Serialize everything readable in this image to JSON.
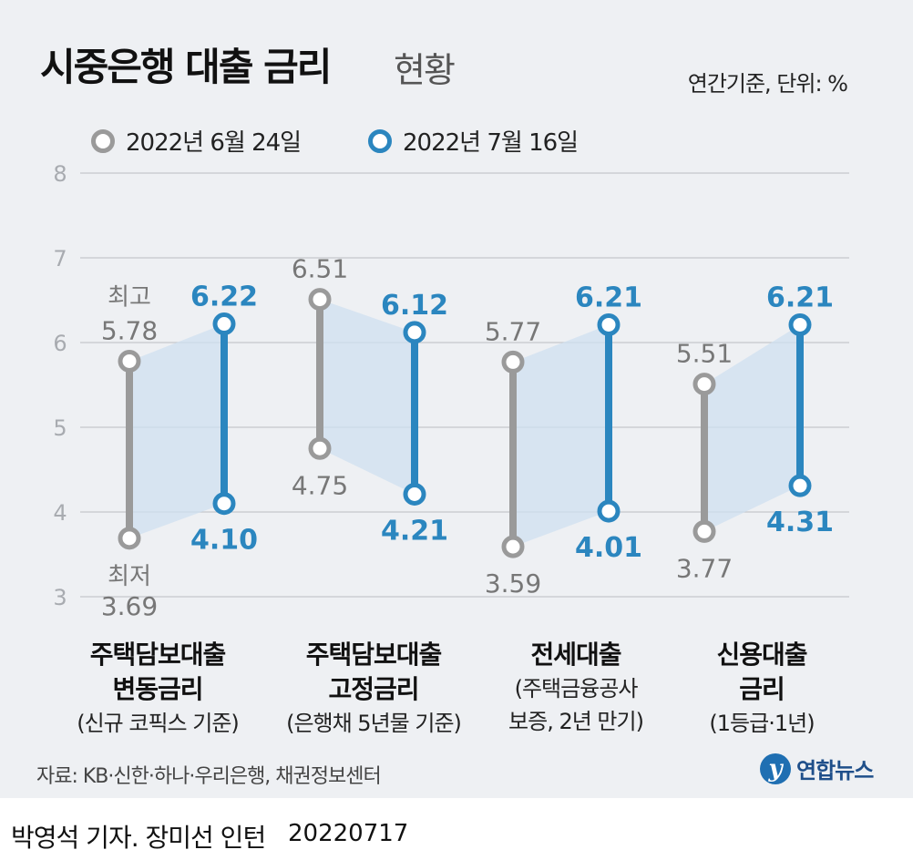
{
  "header": {
    "title_main": "시중은행 대출 금리",
    "title_sub": "현황",
    "unit_note": "연간기준, 단위: %"
  },
  "colors": {
    "old": "#9a9a9a",
    "new": "#2b86bf",
    "band": "#cfe0f0",
    "grid": "#c4c7cc",
    "panel": "#eef0f3"
  },
  "chart_data": {
    "type": "range-comparison",
    "title": "시중은행 대출 금리 현황",
    "ylim": [
      3,
      8
    ],
    "yticks": [
      "3",
      "4",
      "5",
      "6",
      "7",
      "8"
    ],
    "legend": [
      {
        "name": "2022년 6월 24일",
        "color_key": "old"
      },
      {
        "name": "2022년 7월 16일",
        "color_key": "new"
      }
    ],
    "categories": [
      {
        "line1": "주택담보대출",
        "line2": "변동금리",
        "line3": "(신규 코픽스 기준)",
        "line4": ""
      },
      {
        "line1": "주택담보대출",
        "line2": "고정금리",
        "line3": "(은행채 5년물 기준)",
        "line4": ""
      },
      {
        "line1": "전세대출",
        "line2": "",
        "line3": "(주택금융공사",
        "line4": "보증, 2년 만기)"
      },
      {
        "line1": "신용대출",
        "line2": "금리",
        "line3": "(1등급·1년)",
        "line4": ""
      }
    ],
    "series": [
      {
        "name": "2022년 6월 24일",
        "high": [
          5.78,
          6.51,
          5.77,
          5.51
        ],
        "low": [
          3.69,
          4.75,
          3.59,
          3.77
        ],
        "high_labels": [
          "5.78",
          "6.51",
          "5.77",
          "5.51"
        ],
        "low_labels": [
          "3.69",
          "4.75",
          "3.59",
          "3.77"
        ]
      },
      {
        "name": "2022년 7월 16일",
        "high": [
          6.22,
          6.12,
          6.21,
          6.21
        ],
        "low": [
          4.1,
          4.21,
          4.01,
          4.31
        ],
        "high_labels": [
          "6.22",
          "6.12",
          "6.21",
          "6.21"
        ],
        "low_labels": [
          "4.10",
          "4.21",
          "4.01",
          "4.31"
        ]
      }
    ],
    "annotations": {
      "high_word": "최고",
      "low_word": "최저"
    }
  },
  "footer": {
    "source": "자료: KB·신한·하나·우리은행, 채권정보센터",
    "logo_mark": "y",
    "logo_text": "연합뉴스",
    "credit": "박영석 기자. 장미선 인턴",
    "date": "20220717"
  }
}
